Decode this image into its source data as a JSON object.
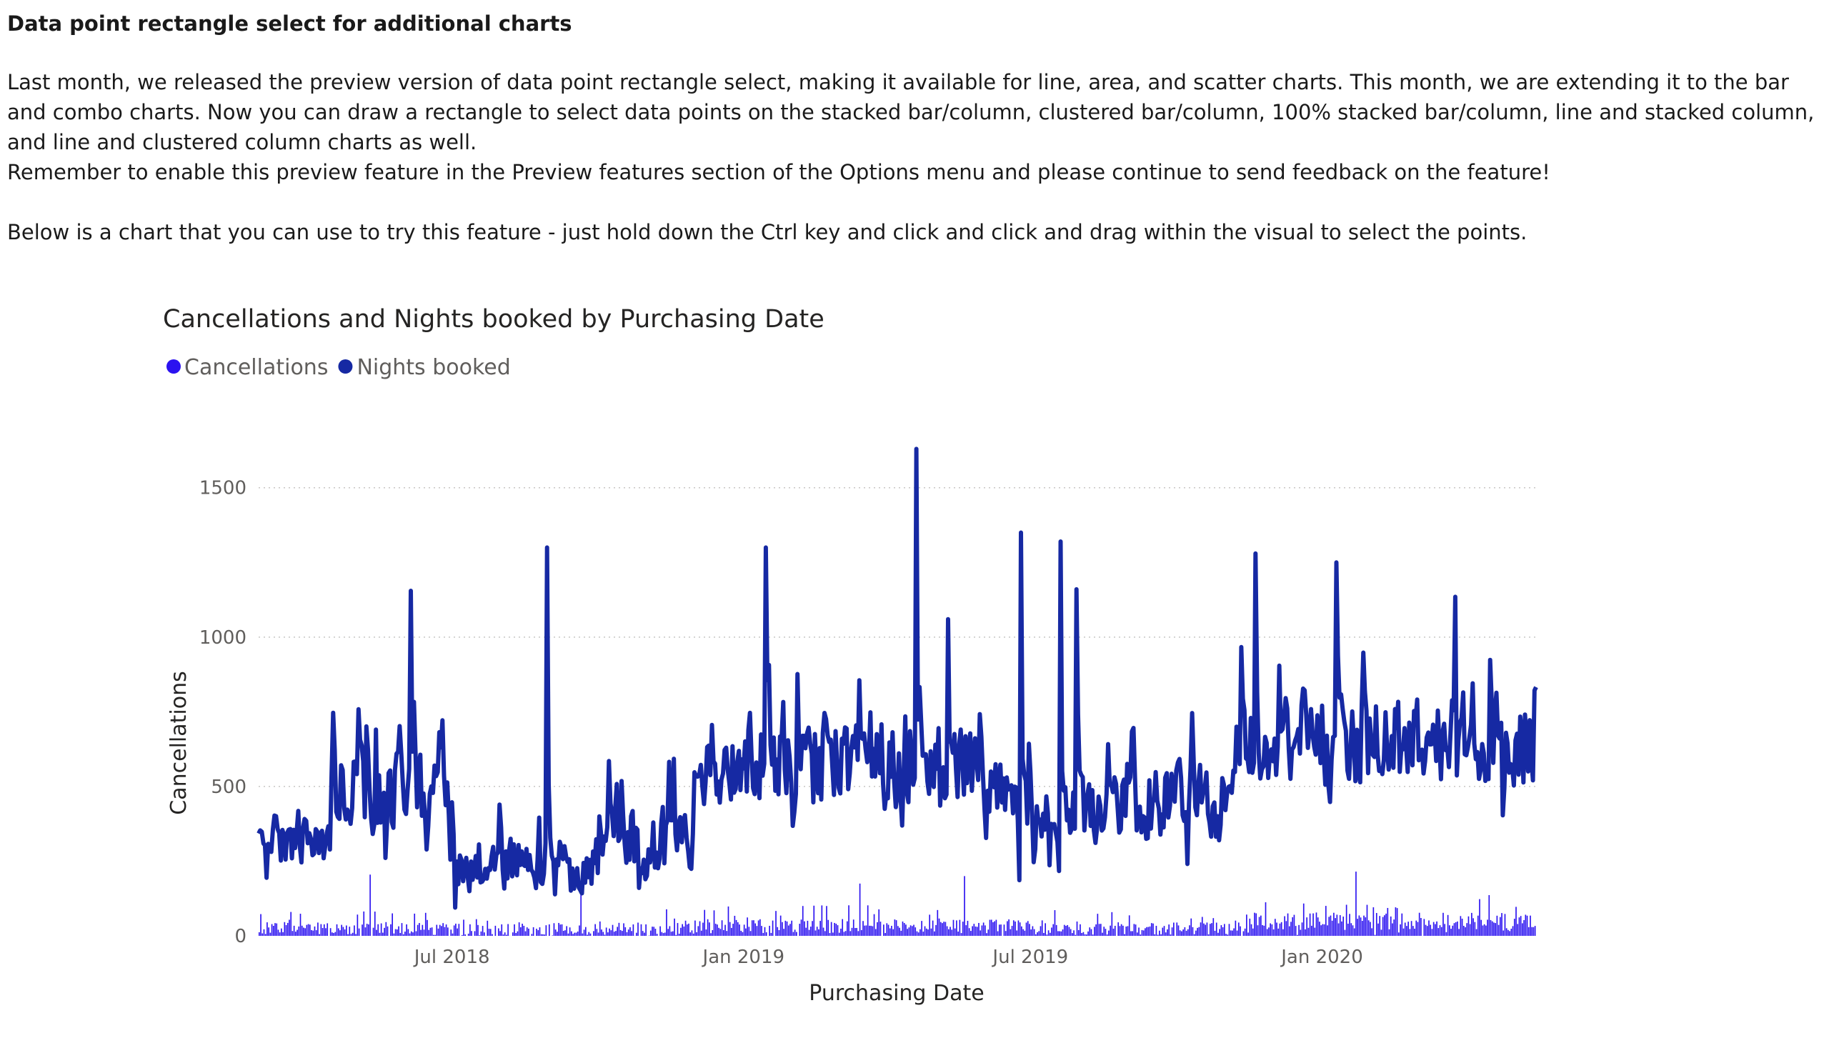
{
  "article": {
    "heading": "Data point rectangle select for additional charts",
    "p1": "Last month, we released the preview version of data point rectangle select, making it available for line, area, and scatter charts. This month, we are extending it to the bar and combo charts. Now you can draw a rectangle to select data points on the stacked bar/column, clustered bar/column, 100% stacked bar/column, line and stacked column, and line and clustered column charts as well.",
    "p2": "Remember to enable this preview feature in the Preview features section of the Options menu and please continue to send feedback on the feature!",
    "p3": "Below is a chart that you can use to try this feature - just hold down the Ctrl key and click and click and drag within the visual to select the points."
  },
  "chart_data": {
    "type": "bar",
    "title": "Cancellations and Nights booked by Purchasing Date",
    "xlabel": "Purchasing Date",
    "ylabel": "Cancellations",
    "ylim": [
      0,
      1650
    ],
    "yticks": [
      0,
      500,
      1000,
      1500
    ],
    "x_range": [
      "2018-03-01",
      "2020-05-15"
    ],
    "xticks": [
      "Jul 2018",
      "Jan 2019",
      "Jul 2019",
      "Jan 2020"
    ],
    "grid": "horizontal-dotted",
    "legend_position": "top-left",
    "colors": {
      "cancellations": "#2b12f0",
      "nights_booked": "#1629a3"
    },
    "series": [
      {
        "name": "Cancellations",
        "mark": "column",
        "segments": [
          {
            "from": "2018-03-01",
            "to": "2018-06-15",
            "level": 20,
            "var": 35,
            "peak": {
              "date": "2018-05-10",
              "value": 205
            }
          },
          {
            "from": "2018-06-15",
            "to": "2018-11-30",
            "level": 12,
            "var": 40,
            "peak": {
              "date": "2018-09-20",
              "value": 185
            }
          },
          {
            "from": "2018-11-30",
            "to": "2019-07-01",
            "level": 25,
            "var": 40,
            "peak": {
              "date": "2019-03-15",
              "value": 175
            }
          },
          {
            "from": "2019-07-01",
            "to": "2019-11-15",
            "level": 18,
            "var": 35,
            "peak": {
              "date": "2019-05-20",
              "value": 200
            }
          },
          {
            "from": "2019-11-15",
            "to": "2020-05-15",
            "level": 40,
            "var": 50,
            "peak": {
              "date": "2020-01-22",
              "value": 215
            }
          }
        ]
      },
      {
        "name": "Nights booked",
        "mark": "line",
        "segments": [
          {
            "from": "2018-03-01",
            "to": "2018-04-15",
            "level": 310,
            "var": 200
          },
          {
            "from": "2018-04-15",
            "to": "2018-07-01",
            "level": 460,
            "var": 320
          },
          {
            "from": "2018-07-01",
            "to": "2018-10-01",
            "level": 230,
            "var": 220
          },
          {
            "from": "2018-10-01",
            "to": "2018-11-30",
            "level": 300,
            "var": 300
          },
          {
            "from": "2018-11-30",
            "to": "2019-06-01",
            "level": 560,
            "var": 380
          },
          {
            "from": "2019-06-01",
            "to": "2019-11-01",
            "level": 430,
            "var": 320
          },
          {
            "from": "2019-11-01",
            "to": "2020-05-15",
            "level": 640,
            "var": 380
          }
        ],
        "spikes": [
          {
            "date": "2018-06-05",
            "value": 1155
          },
          {
            "date": "2018-08-30",
            "value": 1300
          },
          {
            "date": "2019-01-15",
            "value": 1300
          },
          {
            "date": "2019-04-20",
            "value": 1630
          },
          {
            "date": "2019-05-10",
            "value": 1060
          },
          {
            "date": "2019-06-25",
            "value": 1350
          },
          {
            "date": "2019-07-20",
            "value": 1320
          },
          {
            "date": "2019-07-30",
            "value": 1160
          },
          {
            "date": "2019-11-20",
            "value": 1280
          },
          {
            "date": "2020-01-10",
            "value": 1250
          },
          {
            "date": "2020-03-25",
            "value": 1135
          }
        ]
      }
    ]
  }
}
